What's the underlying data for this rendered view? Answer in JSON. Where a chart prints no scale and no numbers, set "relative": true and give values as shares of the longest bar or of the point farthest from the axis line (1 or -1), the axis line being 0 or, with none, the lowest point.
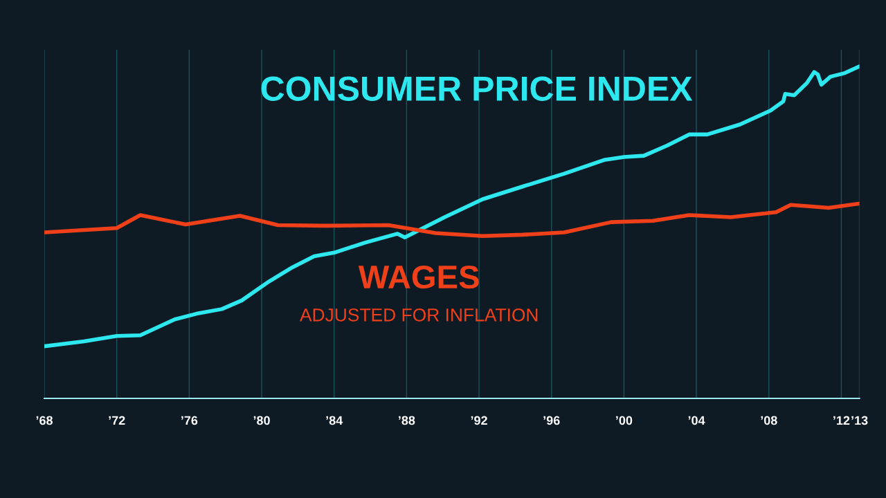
{
  "chart_data": {
    "type": "line",
    "relative": true,
    "annotations": [
      "ADJUSTED FOR INFLATION"
    ],
    "xlim": [
      1968,
      2013
    ],
    "xticks": [
      {
        "value": 1968,
        "label": "’68"
      },
      {
        "value": 1972,
        "label": "’72"
      },
      {
        "value": 1976,
        "label": "’76"
      },
      {
        "value": 1980,
        "label": "’80"
      },
      {
        "value": 1984,
        "label": "’84"
      },
      {
        "value": 1988,
        "label": "’88"
      },
      {
        "value": 1992,
        "label": "’92"
      },
      {
        "value": 1996,
        "label": "’96"
      },
      {
        "value": 2000,
        "label": "’00"
      },
      {
        "value": 2004,
        "label": "’04"
      },
      {
        "value": 2008,
        "label": "’08"
      },
      {
        "value": 2012,
        "label": "’12"
      },
      {
        "value": 2013,
        "label": "’13"
      }
    ],
    "grid": "x",
    "legend": false,
    "series": [
      {
        "name": "CONSUMER PRICE INDEX",
        "color": "#2ee8f0",
        "x": [
          1968,
          1970.2,
          1972,
          1973.3,
          1975.2,
          1976.4,
          1977.8,
          1978.9,
          1980.4,
          1981.7,
          1982.9,
          1984,
          1985.7,
          1987.5,
          1987.9,
          1990.1,
          1992.2,
          1994.4,
          1996.7,
          1998.9,
          2000,
          2001.1,
          2002.4,
          2003.6,
          2004.6,
          2006.4,
          2008.1,
          2008.8,
          2008.9,
          2009.4,
          2010.1,
          2010.5,
          2010.7,
          2010.9,
          2011.4,
          2012.2,
          2013
        ],
        "values": [
          0.157,
          0.172,
          0.188,
          0.19,
          0.238,
          0.255,
          0.269,
          0.295,
          0.352,
          0.395,
          0.428,
          0.439,
          0.469,
          0.496,
          0.485,
          0.546,
          0.6,
          0.638,
          0.677,
          0.718,
          0.727,
          0.731,
          0.762,
          0.795,
          0.795,
          0.825,
          0.867,
          0.895,
          0.917,
          0.913,
          0.95,
          0.983,
          0.976,
          0.945,
          0.969,
          0.98,
          1
        ]
      },
      {
        "name": "WAGES",
        "color": "#f0401a",
        "x": [
          1968,
          1972,
          1973.3,
          1975.8,
          1978.8,
          1980.9,
          1983.5,
          1987.0,
          1989.6,
          1992.2,
          1994.4,
          1996.7,
          1999.3,
          2001.6,
          2003.6,
          2005.9,
          2008.4,
          2009.2,
          2010.1,
          2011.3,
          2013
        ],
        "values": [
          0.5,
          0.513,
          0.552,
          0.524,
          0.55,
          0.522,
          0.52,
          0.522,
          0.498,
          0.489,
          0.493,
          0.5,
          0.531,
          0.535,
          0.552,
          0.546,
          0.561,
          0.583,
          0.579,
          0.574,
          0.587
        ]
      }
    ]
  }
}
